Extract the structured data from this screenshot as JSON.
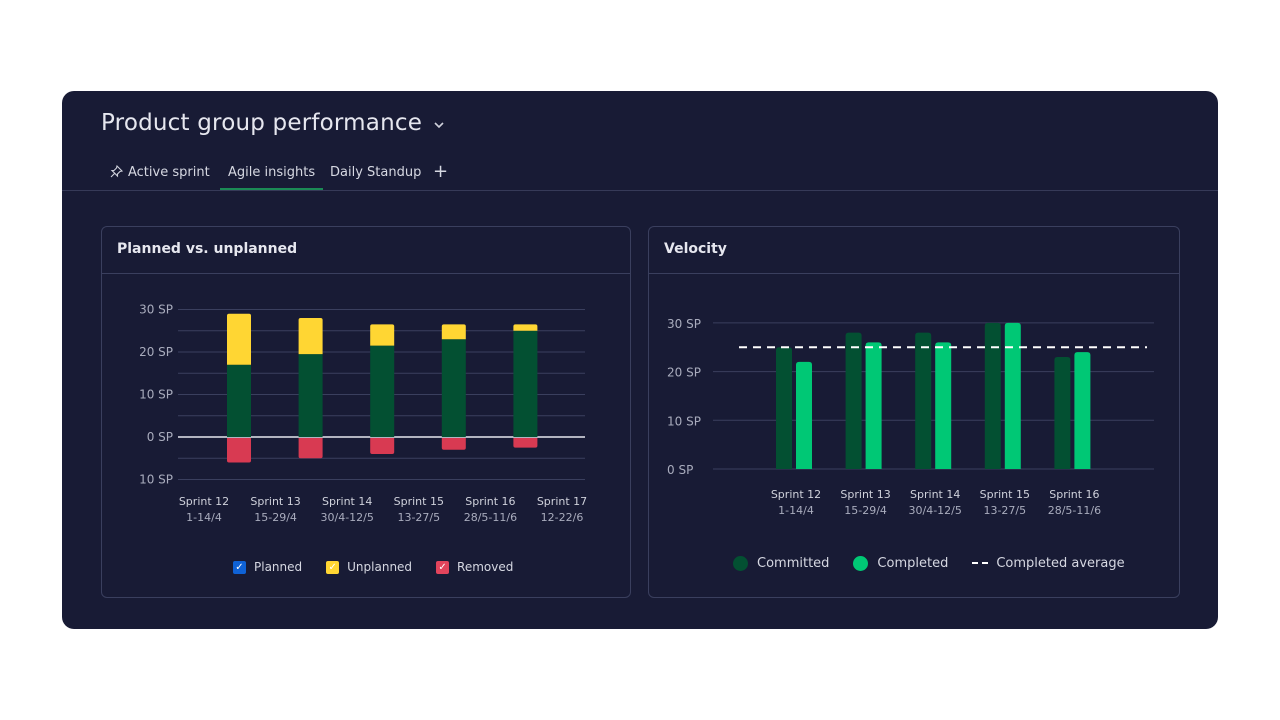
{
  "header": {
    "title": "Product group performance",
    "dropdown_icon": "chevron-down-icon"
  },
  "tabs": [
    {
      "label": "Active sprint",
      "icon": "pin-icon"
    },
    {
      "label": "Agile insights",
      "active": true
    },
    {
      "label": "Daily Standup"
    }
  ],
  "add_tab_label": "+",
  "colors": {
    "planned": "#035032",
    "unplanned": "#ffd633",
    "removed": "#d83a52",
    "committed": "#035032",
    "completed": "#00c875",
    "panel": "#181b35",
    "checkbox_planned": "#0f62d6"
  },
  "planned_card": {
    "title": "Planned vs. unplanned"
  },
  "velocity_card": {
    "title": "Velocity"
  },
  "chart_data": [
    {
      "type": "bar",
      "stacked": true,
      "title": "Planned vs. unplanned",
      "yticks": [
        "30 SP",
        "20 SP",
        "10 SP",
        "0 SP",
        "10 SP"
      ],
      "ytick_values": [
        30,
        20,
        10,
        0,
        -10
      ],
      "ylim": [
        -10,
        30
      ],
      "categories": [
        {
          "name": "Sprint 12",
          "dates": "1-14/4"
        },
        {
          "name": "Sprint 13",
          "dates": "15-29/4"
        },
        {
          "name": "Sprint 14",
          "dates": "30/4-12/5"
        },
        {
          "name": "Sprint 15",
          "dates": "13-27/5"
        },
        {
          "name": "Sprint 16",
          "dates": "28/5-11/6"
        },
        {
          "name": "Sprint 17",
          "dates": "12-22/6"
        }
      ],
      "series": [
        {
          "name": "Planned",
          "values": [
            17,
            19.5,
            21.5,
            23,
            25,
            null
          ]
        },
        {
          "name": "Unplanned",
          "values": [
            12,
            8.5,
            5,
            3.5,
            1.5,
            null
          ]
        },
        {
          "name": "Removed",
          "values": [
            -6,
            -5,
            -4,
            -3,
            -2.5,
            null
          ]
        }
      ],
      "legend": [
        "Planned",
        "Unplanned",
        "Removed"
      ],
      "legend_position": "bottom"
    },
    {
      "type": "bar",
      "title": "Velocity",
      "yticks": [
        "30 SP",
        "20 SP",
        "10 SP",
        "0 SP"
      ],
      "ytick_values": [
        30,
        20,
        10,
        0
      ],
      "ylim": [
        0,
        30
      ],
      "categories": [
        {
          "name": "Sprint 12",
          "dates": "1-14/4"
        },
        {
          "name": "Sprint 13",
          "dates": "15-29/4"
        },
        {
          "name": "Sprint 14",
          "dates": "30/4-12/5"
        },
        {
          "name": "Sprint 15",
          "dates": "13-27/5"
        },
        {
          "name": "Sprint 16",
          "dates": "28/5-11/6"
        }
      ],
      "series": [
        {
          "name": "Committed",
          "values": [
            25,
            28,
            28,
            30,
            23
          ]
        },
        {
          "name": "Completed",
          "values": [
            22,
            26,
            26,
            30,
            24
          ]
        }
      ],
      "completed_average": 25,
      "legend": [
        "Committed",
        "Completed",
        "Completed average"
      ],
      "legend_position": "bottom"
    }
  ]
}
